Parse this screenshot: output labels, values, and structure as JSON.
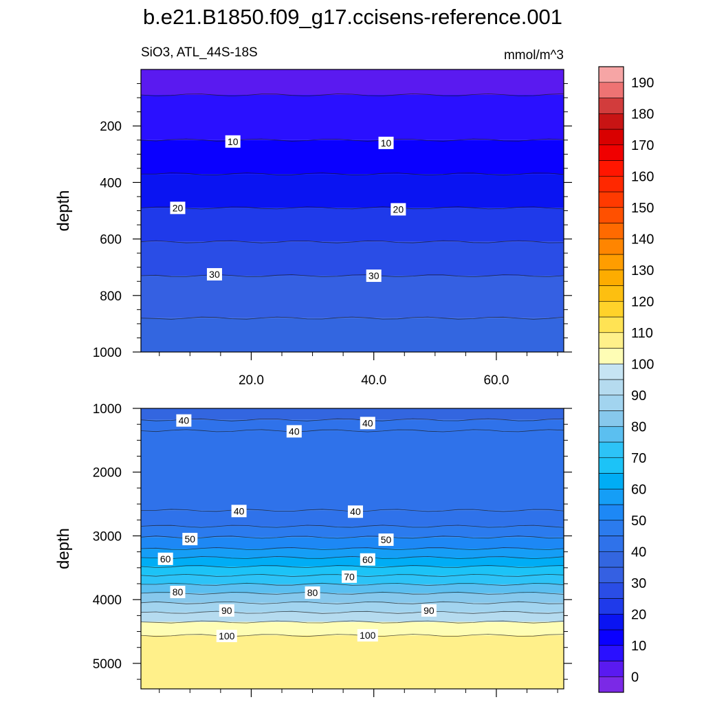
{
  "title": "b.e21.B1850.f09_g17.ccisens-reference.001",
  "chart_data": {
    "type": "heatmap",
    "subtitle_left": "SiO3, ATL_44S-18S",
    "subtitle_right": "mmol/m^3",
    "xlabel": "",
    "xlim": [
      2,
      71
    ],
    "x_ticks": [
      20,
      40,
      60
    ],
    "x_tick_labels": [
      "20.0",
      "40.0",
      "60.0"
    ],
    "upper_panel": {
      "ylabel": "depth",
      "ylim": [
        0,
        1000
      ],
      "y_ticks": [
        200,
        400,
        600,
        800,
        1000
      ],
      "bands": [
        {
          "top": 0,
          "bottom": 90,
          "level": 0
        },
        {
          "top": 90,
          "bottom": 250,
          "level": 5
        },
        {
          "top": 250,
          "bottom": 370,
          "level": 10
        },
        {
          "top": 370,
          "bottom": 490,
          "level": 15
        },
        {
          "top": 490,
          "bottom": 610,
          "level": 20
        },
        {
          "top": 610,
          "bottom": 730,
          "level": 25
        },
        {
          "top": 730,
          "bottom": 880,
          "level": 30
        },
        {
          "top": 880,
          "bottom": 1000,
          "level": 35
        }
      ],
      "contour_labels": [
        {
          "x": 17,
          "depth": 255,
          "text": "10"
        },
        {
          "x": 42,
          "depth": 260,
          "text": "10"
        },
        {
          "x": 8,
          "depth": 490,
          "text": "20"
        },
        {
          "x": 44,
          "depth": 495,
          "text": "20"
        },
        {
          "x": 14,
          "depth": 725,
          "text": "30"
        },
        {
          "x": 40,
          "depth": 730,
          "text": "30"
        }
      ]
    },
    "lower_panel": {
      "ylabel": "depth",
      "ylim": [
        1000,
        5400
      ],
      "y_ticks": [
        1000,
        2000,
        3000,
        4000,
        5000
      ],
      "bands": [
        {
          "top": 1000,
          "bottom": 1180,
          "level": 35
        },
        {
          "top": 1180,
          "bottom": 1350,
          "level": 40
        },
        {
          "top": 1350,
          "bottom": 2600,
          "level": 40
        },
        {
          "top": 2600,
          "bottom": 2850,
          "level": 40
        },
        {
          "top": 2850,
          "bottom": 3020,
          "level": 45
        },
        {
          "top": 3020,
          "bottom": 3200,
          "level": 50
        },
        {
          "top": 3200,
          "bottom": 3340,
          "level": 55
        },
        {
          "top": 3340,
          "bottom": 3480,
          "level": 60
        },
        {
          "top": 3480,
          "bottom": 3620,
          "level": 65
        },
        {
          "top": 3620,
          "bottom": 3760,
          "level": 70
        },
        {
          "top": 3760,
          "bottom": 3900,
          "level": 75
        },
        {
          "top": 3900,
          "bottom": 4050,
          "level": 80
        },
        {
          "top": 4050,
          "bottom": 4200,
          "level": 85
        },
        {
          "top": 4200,
          "bottom": 4350,
          "level": 90
        },
        {
          "top": 4350,
          "bottom": 4560,
          "level": 100
        },
        {
          "top": 4560,
          "bottom": 5400,
          "level": 105
        }
      ],
      "contour_labels": [
        {
          "x": 9,
          "depth": 1190,
          "text": "40"
        },
        {
          "x": 27,
          "depth": 1360,
          "text": "40"
        },
        {
          "x": 39,
          "depth": 1230,
          "text": "40"
        },
        {
          "x": 18,
          "depth": 2610,
          "text": "40"
        },
        {
          "x": 37,
          "depth": 2620,
          "text": "40"
        },
        {
          "x": 10,
          "depth": 3050,
          "text": "50"
        },
        {
          "x": 42,
          "depth": 3060,
          "text": "50"
        },
        {
          "x": 6,
          "depth": 3360,
          "text": "60"
        },
        {
          "x": 39,
          "depth": 3370,
          "text": "60"
        },
        {
          "x": 36,
          "depth": 3640,
          "text": "70"
        },
        {
          "x": 8,
          "depth": 3880,
          "text": "80"
        },
        {
          "x": 30,
          "depth": 3890,
          "text": "80"
        },
        {
          "x": 16,
          "depth": 4170,
          "text": "90"
        },
        {
          "x": 49,
          "depth": 4170,
          "text": "90"
        },
        {
          "x": 16,
          "depth": 4570,
          "text": "100"
        },
        {
          "x": 39,
          "depth": 4560,
          "text": "100"
        }
      ]
    },
    "colorbar": {
      "levels": [
        -5,
        0,
        5,
        10,
        15,
        20,
        25,
        30,
        35,
        40,
        45,
        50,
        55,
        60,
        65,
        70,
        75,
        80,
        85,
        90,
        95,
        100,
        105,
        110,
        115,
        120,
        125,
        130,
        135,
        140,
        145,
        150,
        155,
        160,
        165,
        170,
        175,
        180,
        185,
        190,
        195
      ],
      "colors": [
        "#7b29e6",
        "#5a1af0",
        "#2a10ff",
        "#0a00ff",
        "#0a14f2",
        "#1f3aea",
        "#2a4de6",
        "#3560e2",
        "#3366e0",
        "#2f72ea",
        "#2b7bee",
        "#1d88f5",
        "#159ef6",
        "#00adf5",
        "#1cc3f7",
        "#2dc3f7",
        "#5bbff0",
        "#87c8ec",
        "#a2d4ef",
        "#b5dbef",
        "#c6e4f3",
        "#fefdb5",
        "#fff08a",
        "#ffe354",
        "#ffd22a",
        "#fdbf10",
        "#fdac00",
        "#ff9d00",
        "#ff8500",
        "#ff6a00",
        "#ff5000",
        "#ff3a00",
        "#ff2800",
        "#ff1600",
        "#f00000",
        "#d90000",
        "#c81414",
        "#d23c3c",
        "#ee7373",
        "#f6a5a5"
      ],
      "tick_labels": [
        "0",
        "10",
        "20",
        "30",
        "40",
        "50",
        "60",
        "70",
        "80",
        "90",
        "100",
        "110",
        "120",
        "130",
        "140",
        "150",
        "160",
        "170",
        "180",
        "190"
      ]
    }
  }
}
